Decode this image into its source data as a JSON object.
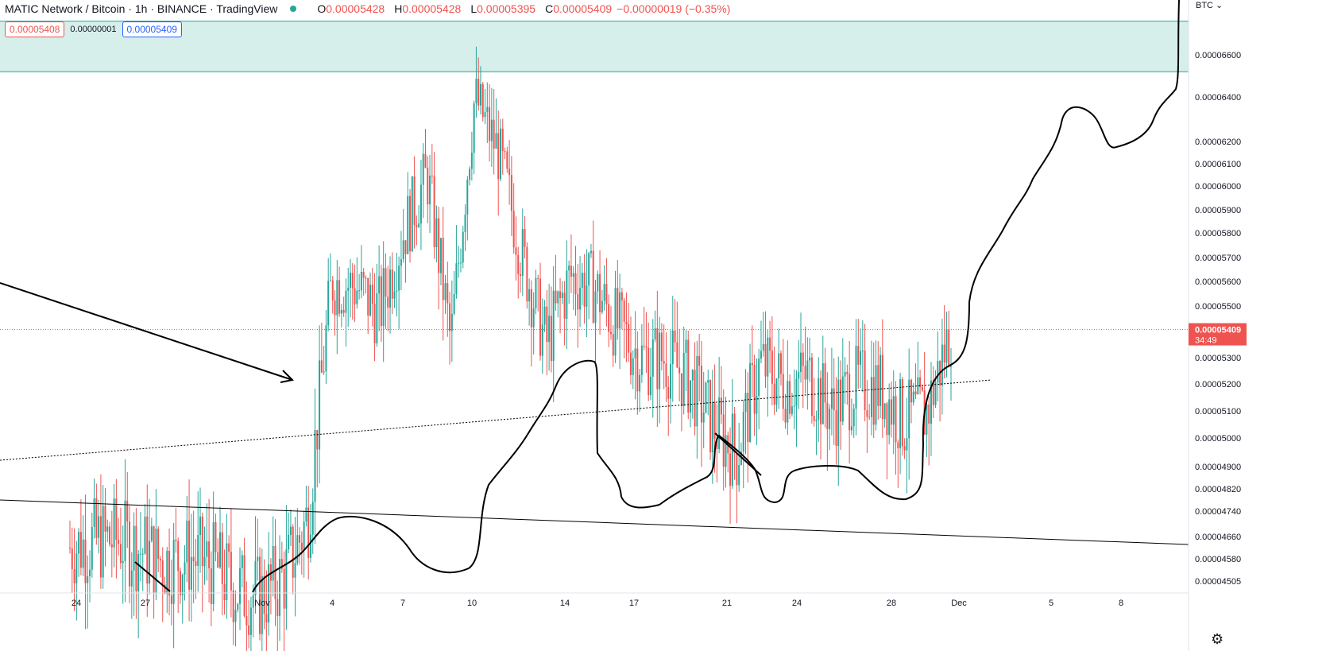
{
  "header": {
    "symbol_title": "MATIC Network / Bitcoin · 1h · BINANCE · TradingView",
    "ohlc": [
      {
        "label": "O",
        "value": "0.00005428"
      },
      {
        "label": "H",
        "value": "0.00005428"
      },
      {
        "label": "L",
        "value": "0.00005395"
      },
      {
        "label": "C",
        "value": "0.00005409"
      }
    ],
    "change": "−0.00000019 (−0.35%)"
  },
  "quote": {
    "sell": "0.00005408",
    "spread": "0.00000001",
    "buy": "0.00005409"
  },
  "currency_label": "BTC",
  "settings_icon": "gear-icon",
  "colors": {
    "up": "#26a69a",
    "down": "#ef5350",
    "zone": "#d6efeb",
    "zone_line": "#26a69a",
    "price_line": "#ef5350",
    "drawing": "#000000"
  },
  "chart_data": {
    "type": "candlestick",
    "interval": "1h",
    "exchange": "BINANCE",
    "y_axis_ticks": [
      "0.00006600",
      "0.00006400",
      "0.00006200",
      "0.00006100",
      "0.00006000",
      "0.00005900",
      "0.00005800",
      "0.00005700",
      "0.00005600",
      "0.00005500",
      "0.00005300",
      "0.00005200",
      "0.00005100",
      "0.00005000",
      "0.00004900",
      "0.00004820",
      "0.00004740",
      "0.00004660",
      "0.00004580",
      "0.00004505"
    ],
    "x_axis_ticks": [
      "24",
      "27",
      "Nov",
      "4",
      "7",
      "10",
      "14",
      "17",
      "21",
      "24",
      "28",
      "Dec",
      "5",
      "8"
    ],
    "last_price": "0.00005409",
    "countdown": "34:49",
    "price_path": [
      [
        "Oct 24",
        4.62e-05
      ],
      [
        "Oct 25",
        4.64e-05
      ],
      [
        "Oct 26",
        4.65e-05
      ],
      [
        "Oct 27",
        4.61e-05
      ],
      [
        "Oct 28",
        4.57e-05
      ],
      [
        "Oct 29",
        4.59e-05
      ],
      [
        "Oct 30",
        4.56e-05
      ],
      [
        "Oct 31",
        4.48e-05
      ],
      [
        "Nov 1",
        4.45e-05
      ],
      [
        "Nov 2",
        4.52e-05
      ],
      [
        "Nov 3",
        4.72e-05
      ],
      [
        "Nov 4",
        5.6e-05
      ],
      [
        "Nov 5",
        5.58e-05
      ],
      [
        "Nov 6",
        5.48e-05
      ],
      [
        "Nov 7",
        5.8e-05
      ],
      [
        "Nov 8",
        6.05e-05
      ],
      [
        "Nov 9",
        5.35e-05
      ],
      [
        "Nov 10",
        6.4e-05
      ],
      [
        "Nov 11",
        6.15e-05
      ],
      [
        "Nov 12",
        5.7e-05
      ],
      [
        "Nov 13",
        5.35e-05
      ],
      [
        "Nov 14",
        5.62e-05
      ],
      [
        "Nov 15",
        5.58e-05
      ],
      [
        "Nov 16",
        5.42e-05
      ],
      [
        "Nov 17",
        5.3e-05
      ],
      [
        "Nov 18",
        5.3e-05
      ],
      [
        "Nov 19",
        5.22e-05
      ],
      [
        "Nov 20",
        5.05e-05
      ],
      [
        "Nov 21",
        4.95e-05
      ],
      [
        "Nov 22",
        5.28e-05
      ],
      [
        "Nov 23",
        5.2e-05
      ],
      [
        "Nov 24",
        5.23e-05
      ],
      [
        "Nov 25",
        5.1e-05
      ],
      [
        "Nov 26",
        5.2e-05
      ],
      [
        "Nov 27",
        5.19e-05
      ],
      [
        "Nov 28",
        5.06e-05
      ],
      [
        "Nov 29",
        5.1e-05
      ],
      [
        "Nov 30",
        5.409e-05
      ]
    ],
    "resistance_zone": [
      6.52e-05,
      6.76e-05
    ]
  }
}
